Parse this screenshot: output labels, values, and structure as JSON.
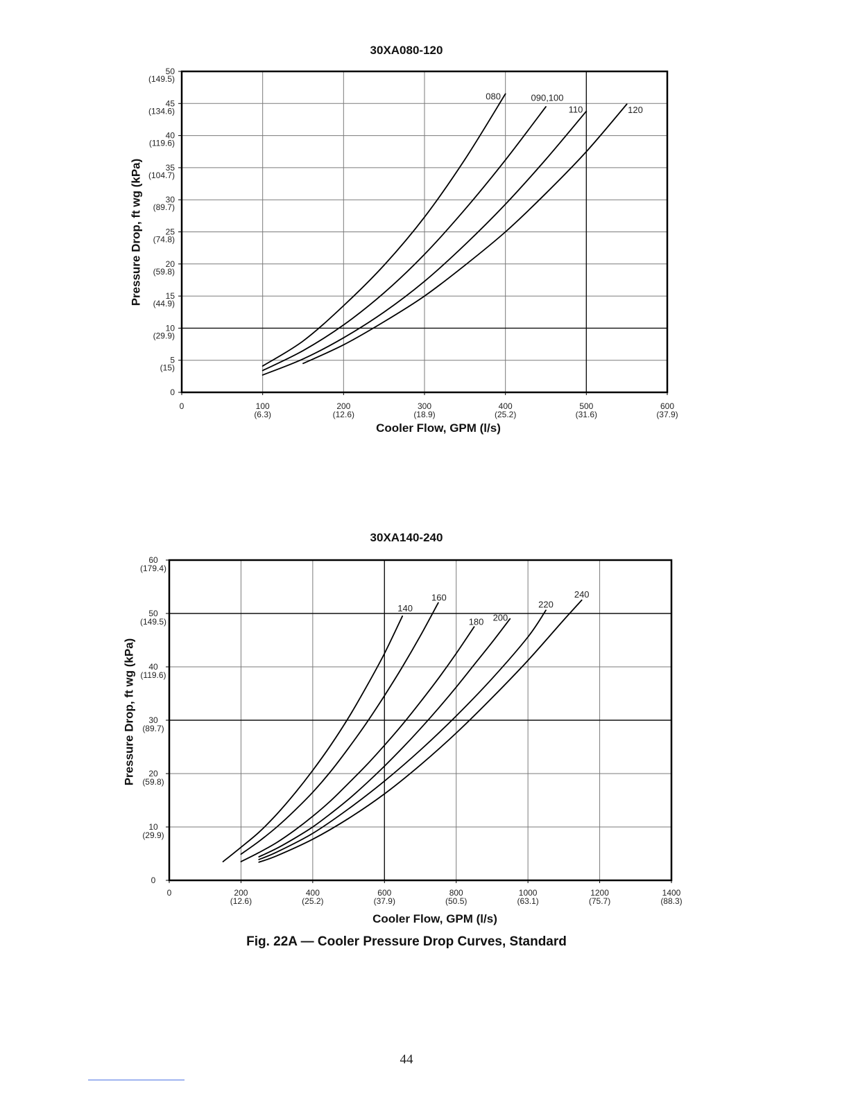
{
  "page": {
    "caption": "Fig. 22A — Cooler Pressure Drop Curves, Standard",
    "page_number": "44"
  },
  "chart_data": [
    {
      "type": "line",
      "title": "30XA080-120",
      "xlabel": "Cooler Flow, GPM (l/s)",
      "ylabel": "Pressure Drop, ft wg (kPa)",
      "xlim": [
        0,
        600
      ],
      "ylim": [
        0,
        50
      ],
      "grid": true,
      "emphasized_grid": {
        "x": [
          500
        ],
        "y": [
          10
        ]
      },
      "x_ticks": [
        {
          "value": 0,
          "label": "0",
          "metric": ""
        },
        {
          "value": 100,
          "label": "100",
          "metric": "(6.3)"
        },
        {
          "value": 200,
          "label": "200",
          "metric": "(12.6)"
        },
        {
          "value": 300,
          "label": "300",
          "metric": "(18.9)"
        },
        {
          "value": 400,
          "label": "400",
          "metric": "(25.2)"
        },
        {
          "value": 500,
          "label": "500",
          "metric": "(31.6)"
        },
        {
          "value": 600,
          "label": "600",
          "metric": "(37.9)"
        }
      ],
      "y_ticks": [
        {
          "value": 0,
          "label": "0",
          "metric": ""
        },
        {
          "value": 5,
          "label": "5",
          "metric": "(15)"
        },
        {
          "value": 10,
          "label": "10",
          "metric": "(29.9)"
        },
        {
          "value": 15,
          "label": "15",
          "metric": "(44.9)"
        },
        {
          "value": 20,
          "label": "20",
          "metric": "(59.8)"
        },
        {
          "value": 25,
          "label": "25",
          "metric": "(74.8)"
        },
        {
          "value": 30,
          "label": "30",
          "metric": "(89.7)"
        },
        {
          "value": 35,
          "label": "35",
          "metric": "(104.7)"
        },
        {
          "value": 40,
          "label": "40",
          "metric": "(119.6)"
        },
        {
          "value": 45,
          "label": "45",
          "metric": "(134.6)"
        },
        {
          "value": 50,
          "label": "50",
          "metric": "(149.5)"
        }
      ],
      "series": [
        {
          "name": "080",
          "points": [
            [
              100,
              4.1
            ],
            [
              150,
              8.0
            ],
            [
              200,
              13.5
            ],
            [
              250,
              19.8
            ],
            [
              300,
              27.3
            ],
            [
              350,
              36.3
            ],
            [
              400,
              46.5
            ]
          ]
        },
        {
          "name": "090,100",
          "points": [
            [
              100,
              3.4
            ],
            [
              150,
              6.5
            ],
            [
              200,
              10.5
            ],
            [
              250,
              15.5
            ],
            [
              300,
              21.5
            ],
            [
              350,
              28.5
            ],
            [
              400,
              36.2
            ],
            [
              450,
              44.5
            ]
          ]
        },
        {
          "name": "110",
          "points": [
            [
              100,
              2.7
            ],
            [
              150,
              5.2
            ],
            [
              200,
              8.5
            ],
            [
              250,
              12.5
            ],
            [
              300,
              17.3
            ],
            [
              350,
              23.0
            ],
            [
              400,
              29.3
            ],
            [
              450,
              36.3
            ],
            [
              500,
              43.8
            ]
          ]
        },
        {
          "name": "120",
          "points": [
            [
              150,
              4.5
            ],
            [
              200,
              7.4
            ],
            [
              250,
              11.0
            ],
            [
              300,
              15.0
            ],
            [
              350,
              19.8
            ],
            [
              400,
              25.0
            ],
            [
              450,
              31.0
            ],
            [
              500,
              37.5
            ],
            [
              550,
              44.9
            ]
          ]
        }
      ]
    },
    {
      "type": "line",
      "title": "30XA140-240",
      "xlabel": "Cooler Flow, GPM (l/s)",
      "ylabel": "Pressure Drop, ft wg (kPa)",
      "xlim": [
        0,
        1400
      ],
      "ylim": [
        0,
        60
      ],
      "grid": true,
      "emphasized_grid": {
        "x": [
          600
        ],
        "y": [
          30,
          50
        ]
      },
      "x_ticks": [
        {
          "value": 0,
          "label": "0",
          "metric": ""
        },
        {
          "value": 200,
          "label": "200",
          "metric": "(12.6)"
        },
        {
          "value": 400,
          "label": "400",
          "metric": "(25.2)"
        },
        {
          "value": 600,
          "label": "600",
          "metric": "(37.9)"
        },
        {
          "value": 800,
          "label": "800",
          "metric": "(50.5)"
        },
        {
          "value": 1000,
          "label": "1000",
          "metric": "(63.1)"
        },
        {
          "value": 1200,
          "label": "1200",
          "metric": "(75.7)"
        },
        {
          "value": 1400,
          "label": "1400",
          "metric": "(88.3)"
        }
      ],
      "y_ticks": [
        {
          "value": 0,
          "label": "0",
          "metric": ""
        },
        {
          "value": 10,
          "label": "10",
          "metric": "(29.9)"
        },
        {
          "value": 20,
          "label": "20",
          "metric": "(59.8)"
        },
        {
          "value": 30,
          "label": "30",
          "metric": "(89.7)"
        },
        {
          "value": 40,
          "label": "40",
          "metric": "(119.6)"
        },
        {
          "value": 50,
          "label": "50",
          "metric": "(149.5)"
        },
        {
          "value": 60,
          "label": "60",
          "metric": "(179.4)"
        }
      ],
      "series": [
        {
          "name": "140",
          "points": [
            [
              150,
              3.5
            ],
            [
              200,
              6.2
            ],
            [
              250,
              9.0
            ],
            [
              300,
              12.4
            ],
            [
              350,
              16.3
            ],
            [
              400,
              20.6
            ],
            [
              450,
              25.3
            ],
            [
              500,
              30.5
            ],
            [
              550,
              36.3
            ],
            [
              600,
              42.5
            ],
            [
              650,
              49.5
            ]
          ]
        },
        {
          "name": "160",
          "points": [
            [
              200,
              4.9
            ],
            [
              250,
              7.3
            ],
            [
              300,
              10.0
            ],
            [
              350,
              13.1
            ],
            [
              400,
              16.5
            ],
            [
              450,
              20.4
            ],
            [
              500,
              24.8
            ],
            [
              550,
              29.5
            ],
            [
              600,
              34.6
            ],
            [
              650,
              40.0
            ],
            [
              700,
              45.8
            ],
            [
              750,
              52.0
            ]
          ]
        },
        {
          "name": "180",
          "points": [
            [
              200,
              3.5
            ],
            [
              250,
              5.2
            ],
            [
              300,
              7.1
            ],
            [
              350,
              9.4
            ],
            [
              400,
              12.0
            ],
            [
              450,
              14.9
            ],
            [
              500,
              18.2
            ],
            [
              550,
              21.6
            ],
            [
              600,
              25.3
            ],
            [
              650,
              29.2
            ],
            [
              700,
              33.4
            ],
            [
              750,
              37.8
            ],
            [
              800,
              42.5
            ],
            [
              850,
              47.5
            ]
          ]
        },
        {
          "name": "200",
          "points": [
            [
              250,
              4.4
            ],
            [
              300,
              6.0
            ],
            [
              350,
              7.9
            ],
            [
              400,
              10.0
            ],
            [
              450,
              12.5
            ],
            [
              500,
              15.2
            ],
            [
              550,
              18.2
            ],
            [
              600,
              21.4
            ],
            [
              650,
              24.8
            ],
            [
              700,
              28.4
            ],
            [
              750,
              32.2
            ],
            [
              800,
              36.2
            ],
            [
              850,
              40.4
            ],
            [
              900,
              44.6
            ],
            [
              950,
              49.0
            ]
          ]
        },
        {
          "name": "220",
          "points": [
            [
              250,
              3.9
            ],
            [
              300,
              5.3
            ],
            [
              400,
              8.8
            ],
            [
              500,
              13.4
            ],
            [
              600,
              18.6
            ],
            [
              700,
              24.4
            ],
            [
              800,
              30.8
            ],
            [
              900,
              37.8
            ],
            [
              1000,
              45.6
            ],
            [
              1050,
              50.6
            ]
          ]
        },
        {
          "name": "240",
          "points": [
            [
              250,
              3.4
            ],
            [
              300,
              4.6
            ],
            [
              400,
              7.7
            ],
            [
              500,
              11.6
            ],
            [
              600,
              16.2
            ],
            [
              700,
              21.6
            ],
            [
              800,
              27.6
            ],
            [
              900,
              34.2
            ],
            [
              1000,
              41.2
            ],
            [
              1100,
              48.8
            ],
            [
              1150,
              52.5
            ]
          ]
        }
      ]
    }
  ]
}
